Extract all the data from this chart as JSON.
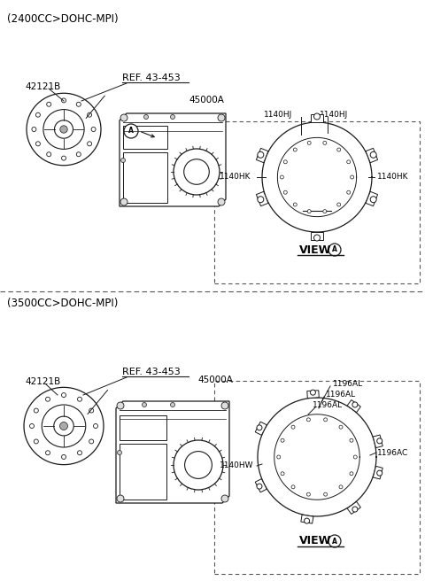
{
  "bg_color": "#ffffff",
  "font_color": "#000000",
  "line_color": "#1a1a1a",
  "dashed_color": "#555555",
  "section1_header": "(2400CC>DOHC-MPI)",
  "section2_header": "(3500CC>DOHC-MPI)",
  "s1_label_42121B": "42121B",
  "s1_label_ref": "REF. 43-453",
  "s1_label_45000A": "45000A",
  "s1_view_label": "VIEW",
  "s1_1140HJ_1": "1140HJ",
  "s1_1140HJ_2": "1140HJ",
  "s1_1140HK_l": "1140HK",
  "s1_1140HK_r": "1140HK",
  "s2_label_42121B": "42121B",
  "s2_label_ref": "REF. 43-453",
  "s2_label_45000A": "45000A",
  "s2_view_label": "VIEW",
  "s2_1196AL_1": "1196AL",
  "s2_1196AL_2": "1196AL",
  "s2_1196AL_3": "1196AL",
  "s2_1196AC": "1196AC",
  "s2_1140HW": "1140HW"
}
